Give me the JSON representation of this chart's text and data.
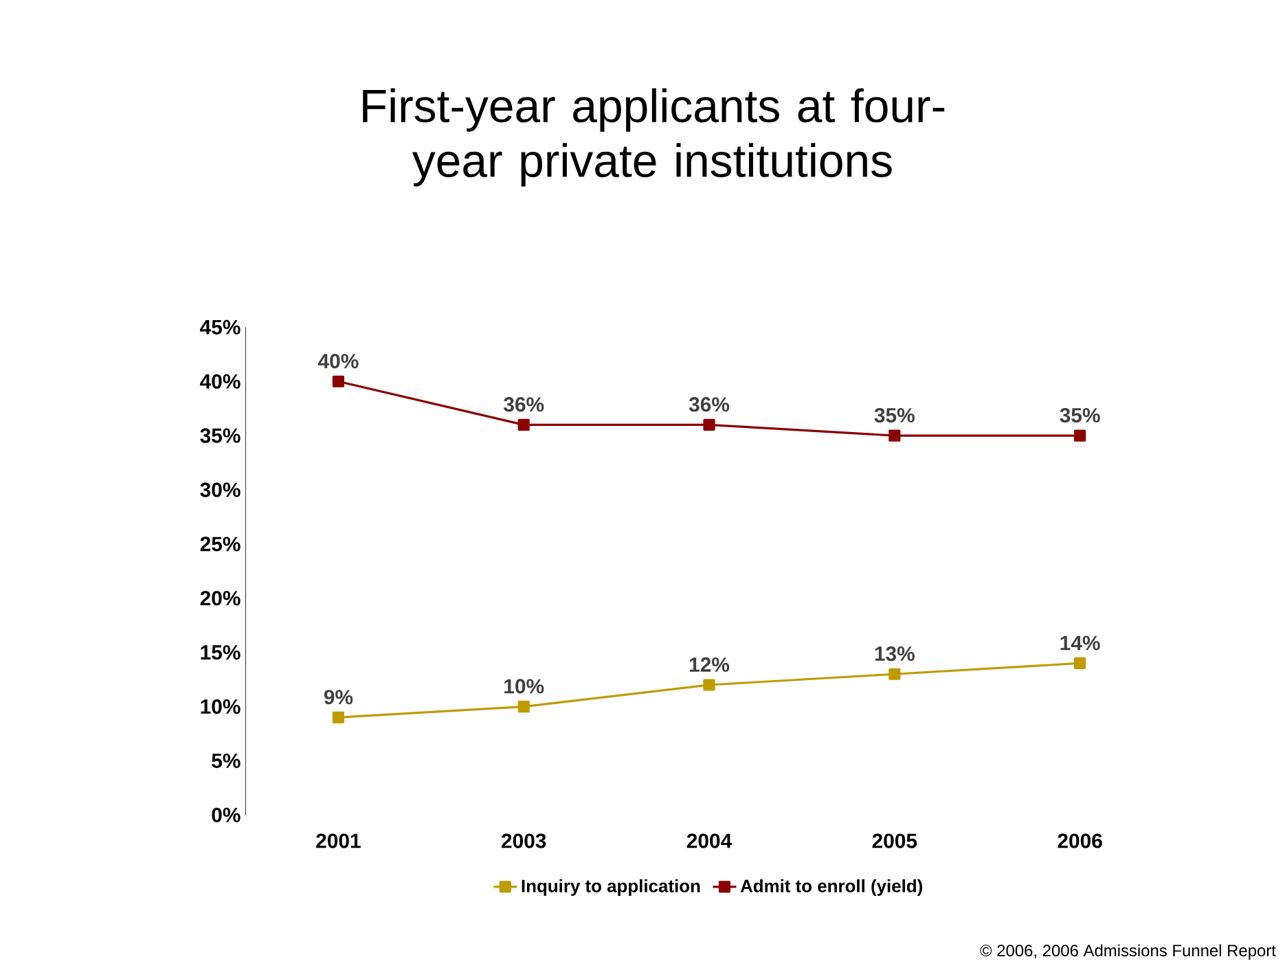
{
  "chart_data": {
    "type": "line",
    "title": "First-year applicants at four-year private institutions",
    "categories": [
      "2001",
      "2003",
      "2004",
      "2005",
      "2006"
    ],
    "series": [
      {
        "name": "Inquiry to application",
        "color": "#bf9b00",
        "values": [
          9,
          10,
          12,
          13,
          14
        ],
        "value_labels": [
          "9%",
          "10%",
          "12%",
          "13%",
          "14%"
        ]
      },
      {
        "name": "Admit to enroll (yield)",
        "color": "#8b0000",
        "values": [
          40,
          36,
          36,
          35,
          35
        ],
        "value_labels": [
          "40%",
          "36%",
          "36%",
          "35%",
          "35%"
        ]
      }
    ],
    "ylim": [
      0,
      45
    ],
    "yticks": [
      {
        "value": 0,
        "label": "0%"
      },
      {
        "value": 5,
        "label": "5%"
      },
      {
        "value": 10,
        "label": "10%"
      },
      {
        "value": 15,
        "label": "15%"
      },
      {
        "value": 20,
        "label": "20%"
      },
      {
        "value": 25,
        "label": "25%"
      },
      {
        "value": 30,
        "label": "30%"
      },
      {
        "value": 35,
        "label": "35%"
      },
      {
        "value": 40,
        "label": "40%"
      },
      {
        "value": 45,
        "label": "45%"
      }
    ],
    "grid": false,
    "legend": "bottom",
    "marker": "square",
    "line_style": "solid",
    "annotations": [
      "© 2006, 2006 Admissions Funnel Report"
    ]
  }
}
